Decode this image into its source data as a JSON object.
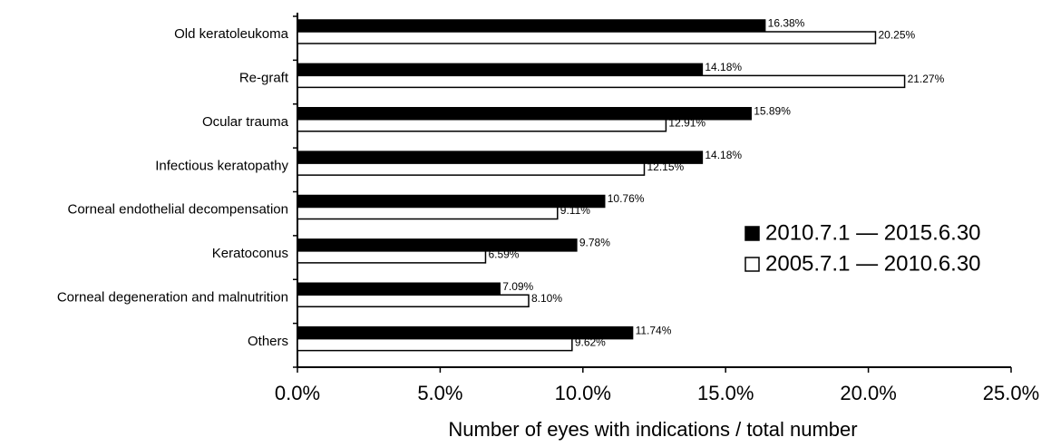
{
  "chart_data": {
    "type": "bar",
    "orientation": "horizontal",
    "x_label": "Number of eyes with indications / total number",
    "categories": [
      "Old keratoleukoma",
      "Re-graft",
      "Ocular trauma",
      "Infectious keratopathy",
      "Corneal endothelial decompensation",
      "Keratoconus",
      "Corneal degeneration and malnutrition",
      "Others"
    ],
    "series": [
      {
        "name": "2010.7.1 — 2015.6.30",
        "color": "#000000",
        "values": [
          16.38,
          14.18,
          15.89,
          14.18,
          10.76,
          9.78,
          7.09,
          11.74
        ],
        "value_labels": [
          "16.38%",
          "14.18%",
          "15.89%",
          "14.18%",
          "10.76%",
          "9.78%",
          "7.09%",
          "11.74%"
        ]
      },
      {
        "name": "2005.7.1 — 2010.6.30",
        "color": "#ffffff",
        "values": [
          20.25,
          21.27,
          12.91,
          12.15,
          9.11,
          6.59,
          8.1,
          9.62
        ],
        "value_labels": [
          "20.25%",
          "21.27%",
          "12.91%",
          "12.15%",
          "9.11%",
          "6.59%",
          "8.10%",
          "9.62%"
        ]
      }
    ],
    "xlim": [
      0,
      25
    ],
    "xticks": [
      {
        "value": 0,
        "label": "0.0%"
      },
      {
        "value": 5,
        "label": "5.0%"
      },
      {
        "value": 10,
        "label": "10.0%"
      },
      {
        "value": 15,
        "label": "15.0%"
      },
      {
        "value": 20,
        "label": "20.0%"
      },
      {
        "value": 25,
        "label": "25.0%"
      }
    ],
    "grid": false,
    "legend": "right"
  }
}
